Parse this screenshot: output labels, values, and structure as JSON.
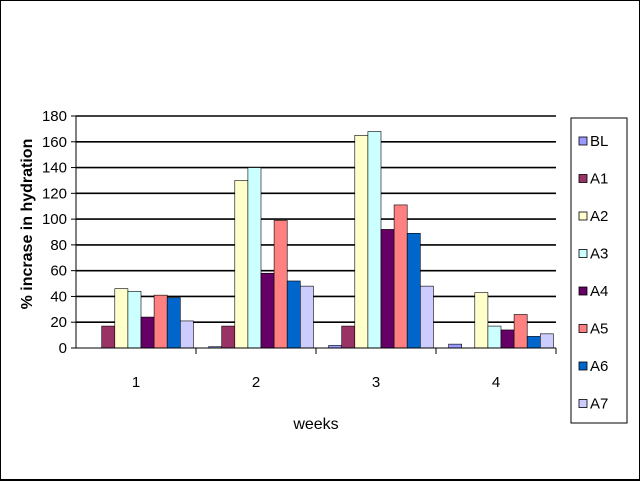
{
  "chart_data": {
    "type": "bar",
    "categories": [
      "1",
      "2",
      "3",
      "4"
    ],
    "xlabel": "weeks",
    "ylabel": "% incrase in hydration",
    "ylim": [
      0,
      180
    ],
    "yticks": [
      0,
      20,
      40,
      60,
      80,
      100,
      120,
      140,
      160,
      180
    ],
    "grid": true,
    "legend": "right",
    "series": [
      {
        "name": "BL",
        "color": "#9999ff",
        "values": [
          0,
          1,
          2,
          3
        ]
      },
      {
        "name": "A1",
        "color": "#993366",
        "values": [
          17,
          17,
          17,
          0
        ]
      },
      {
        "name": "A2",
        "color": "#ffffcc",
        "values": [
          46,
          130,
          165,
          43
        ]
      },
      {
        "name": "A3",
        "color": "#ccffff",
        "values": [
          44,
          140,
          168,
          17
        ]
      },
      {
        "name": "A4",
        "color": "#660066",
        "values": [
          24,
          58,
          92,
          14
        ]
      },
      {
        "name": "A5",
        "color": "#ff8080",
        "values": [
          41,
          99,
          111,
          26
        ]
      },
      {
        "name": "A6",
        "color": "#0066cc",
        "values": [
          39,
          52,
          89,
          9
        ]
      },
      {
        "name": "A7",
        "color": "#ccccff",
        "values": [
          21,
          48,
          48,
          11
        ]
      }
    ]
  }
}
